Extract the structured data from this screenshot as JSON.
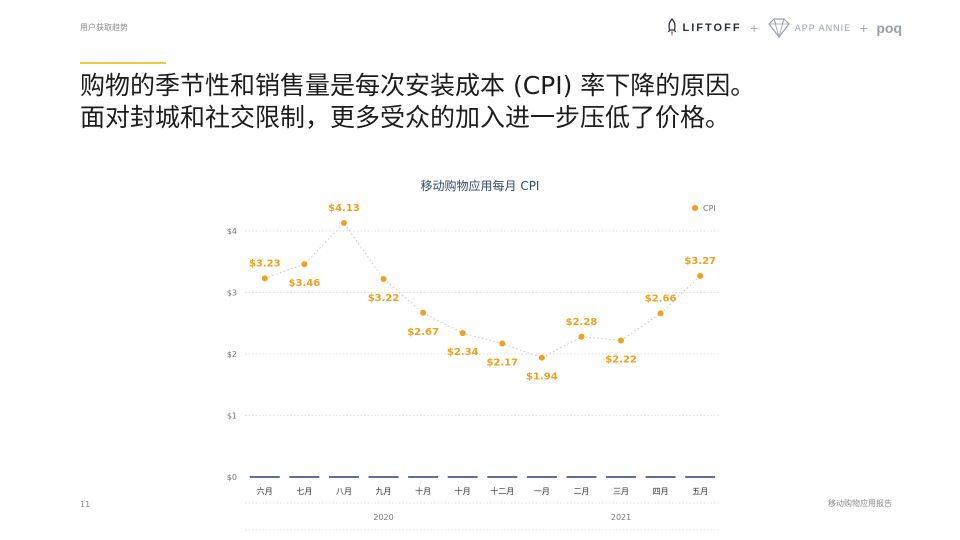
{
  "header": {
    "section_label": "用户获取趋势",
    "brands": {
      "liftoff": "LIFTOFF",
      "plus": "+",
      "app_annie": "APP ANNIE",
      "poq": "poq"
    }
  },
  "headline": {
    "line1": "购物的季节性和销售量是每次安装成本 (CPI) 率下降的原因。",
    "line2": "面对封城和社交限制，更多受众的加入进一步压低了价格。"
  },
  "footer": {
    "page_number": "11",
    "right_text": "移动购物应用报告"
  },
  "colors": {
    "accent": "#f5c542",
    "series": "#f0a020",
    "baseline": "#2c3e7a",
    "axis_text": "#777777"
  },
  "chart_data": {
    "type": "line",
    "title": "移动购物应用每月 CPI",
    "categories": [
      "六月",
      "七月",
      "八月",
      "九月",
      "十月",
      "十月",
      "十二月",
      "一月",
      "二月",
      "三月",
      "四月",
      "五月"
    ],
    "year_labels": [
      "2020",
      "2021"
    ],
    "series": [
      {
        "name": "CPI",
        "values": [
          3.23,
          3.46,
          4.13,
          3.22,
          2.67,
          2.34,
          2.17,
          1.94,
          2.28,
          2.22,
          2.66,
          3.27
        ],
        "labels": [
          "$3.23",
          "$3.46",
          "$4.13",
          "$3.22",
          "$2.67",
          "$2.34",
          "$2.17",
          "$1.94",
          "$2.28",
          "$2.22",
          "$2.66",
          "$3.27"
        ]
      }
    ],
    "y_ticks": [
      0,
      1,
      2,
      3,
      4
    ],
    "y_tick_labels": [
      "$0",
      "$1",
      "$2",
      "$3",
      "$4"
    ],
    "ylim": [
      0,
      4.5
    ],
    "grid": true,
    "legend_position": "top-right"
  }
}
